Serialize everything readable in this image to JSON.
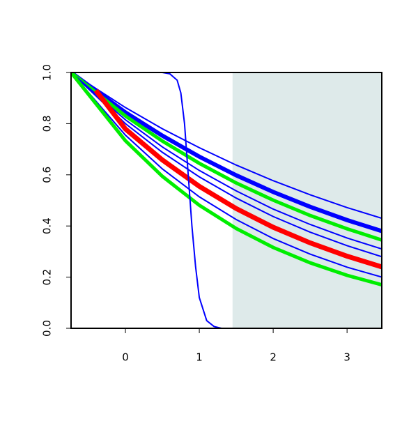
{
  "chart_data": {
    "type": "line",
    "xlim": [
      -0.736,
      3.47
    ],
    "ylim": [
      0,
      1
    ],
    "xticks": [
      0,
      1,
      2,
      3
    ],
    "yticks": [
      {
        "value": 0,
        "label": "0.0"
      },
      {
        "value": 0.2,
        "label": "0.2"
      },
      {
        "value": 0.4,
        "label": "0.4"
      },
      {
        "value": 0.6,
        "label": "0.6"
      },
      {
        "value": 0.8,
        "label": "0.8"
      },
      {
        "value": 1,
        "label": "1.0"
      }
    ],
    "band": {
      "from": 1.45,
      "to": 3.47,
      "color": "#deeaea"
    },
    "series": [
      {
        "color": "#0000ff",
        "width": 2,
        "x": [
          -0.736,
          0,
          0.5,
          1,
          1.5,
          2,
          2.5,
          3,
          3.47
        ],
        "values": [
          1,
          0.863,
          0.78,
          0.706,
          0.638,
          0.577,
          0.522,
          0.472,
          0.43
        ]
      },
      {
        "color": "#0000ff",
        "width": 6,
        "x": [
          -0.736,
          0,
          0.5,
          1,
          1.5,
          2,
          2.5,
          3,
          3.47
        ],
        "values": [
          1,
          0.844,
          0.753,
          0.671,
          0.598,
          0.533,
          0.475,
          0.423,
          0.38
        ]
      },
      {
        "color": "#00ee00",
        "width": 5,
        "x": [
          -0.736,
          0,
          0.5,
          1,
          1.5,
          2,
          2.5,
          3,
          3.47
        ],
        "values": [
          1,
          0.83,
          0.732,
          0.645,
          0.568,
          0.501,
          0.441,
          0.389,
          0.345
        ]
      },
      {
        "color": "#0000ff",
        "width": 2,
        "x": [
          -0.736,
          0,
          0.5,
          1,
          1.5,
          2,
          2.5,
          3,
          3.47
        ],
        "values": [
          1,
          0.815,
          0.709,
          0.617,
          0.537,
          0.466,
          0.406,
          0.353,
          0.31
        ]
      },
      {
        "color": "#0000ff",
        "width": 2,
        "x": [
          -0.736,
          0,
          0.5,
          1,
          1.5,
          2,
          2.5,
          3,
          3.47
        ],
        "values": [
          1,
          0.8,
          0.688,
          0.592,
          0.509,
          0.437,
          0.376,
          0.323,
          0.28
        ]
      },
      {
        "color": "#ff0000",
        "width": 7,
        "x": [
          -0.4,
          0,
          0.5,
          1,
          1.5,
          2,
          2.5,
          3,
          3.47
        ],
        "values": [
          0.93,
          0.779,
          0.658,
          0.555,
          0.468,
          0.395,
          0.334,
          0.282,
          0.24
        ]
      },
      {
        "color": "#0000ff",
        "width": 2,
        "x": [
          -0.736,
          0,
          0.5,
          1,
          1.5,
          2,
          2.5,
          3,
          3.47
        ],
        "values": [
          1,
          0.755,
          0.623,
          0.514,
          0.425,
          0.351,
          0.29,
          0.239,
          0.2
        ]
      },
      {
        "color": "#00ee00",
        "width": 5,
        "x": [
          -0.736,
          0,
          0.5,
          1,
          1.5,
          2,
          2.5,
          3,
          3.47
        ],
        "values": [
          1,
          0.733,
          0.594,
          0.481,
          0.39,
          0.316,
          0.256,
          0.207,
          0.17
        ]
      },
      {
        "color": "#0000ff",
        "width": 2,
        "x": [
          -0.736,
          0,
          0.5,
          0.6,
          0.7,
          0.75,
          0.8,
          0.85,
          0.9,
          0.95,
          1.0,
          1.1,
          1.2,
          1.3,
          3.47
        ],
        "values": [
          1,
          1,
          1,
          0.995,
          0.97,
          0.92,
          0.8,
          0.6,
          0.4,
          0.24,
          0.12,
          0.03,
          0.007,
          0,
          0
        ]
      }
    ]
  }
}
